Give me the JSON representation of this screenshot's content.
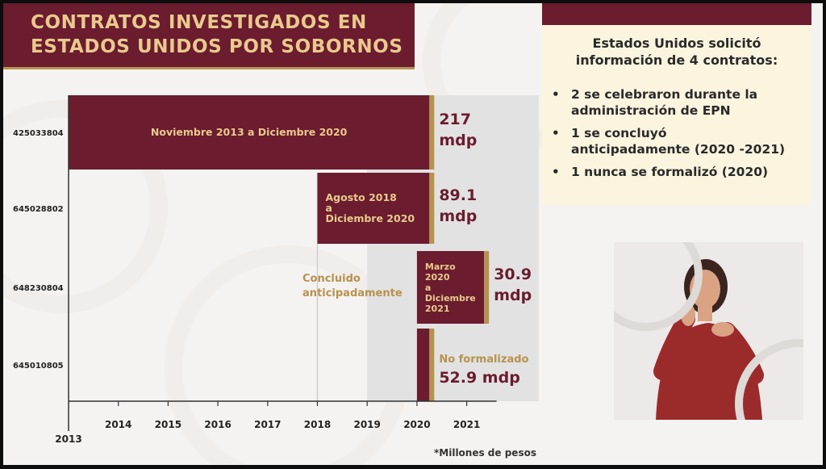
{
  "header": {
    "title_line1": "CONTRATOS INVESTIGADOS EN",
    "title_line2": "ESTADOS UNIDOS POR SOBORNOS"
  },
  "info_panel": {
    "heading_line1": "Estados Unidos solicitó",
    "heading_line2": "información de 4 contratos:",
    "bullets": [
      [
        "2 se celebraron durante la",
        "administración de EPN"
      ],
      [
        "1 se concluyó",
        "anticipadamente (2020 -2021)"
      ],
      [
        "1 nunca se formalizó (2020)"
      ]
    ]
  },
  "chart_data": {
    "type": "bar",
    "orientation": "horizontal-timeline",
    "x_axis_ticks": [
      "2013",
      "2014",
      "2015",
      "2016",
      "2017",
      "2018",
      "2019",
      "2020",
      "2021"
    ],
    "x_range": [
      2013,
      2021.6
    ],
    "categories": [
      "425033804",
      "645028802",
      "648230804",
      "645010805"
    ],
    "series": [
      {
        "values": [
          217,
          89.1,
          30.9,
          52.9
        ],
        "value_labels": [
          [
            "217",
            "mdp"
          ],
          [
            "89.1",
            "mdp"
          ],
          [
            "30.9",
            "mdp"
          ],
          [
            "No formalizado",
            "52.9 mdp"
          ]
        ],
        "periods": [
          {
            "start": 2013,
            "end": 2020.25,
            "label": [
              "Noviembre 2013 a Diciembre 2020"
            ]
          },
          {
            "start": 2018,
            "end": 2020.25,
            "label": [
              "Agosto 2018",
              "a",
              "Diciembre 2020"
            ]
          },
          {
            "start": 2020,
            "end": 2021.35,
            "label": [
              "Marzo",
              "2020",
              "a",
              "Diciembre",
              "2021"
            ]
          },
          {
            "start": 2020,
            "end": 2020.25,
            "label": []
          }
        ]
      }
    ],
    "annotations": [
      [
        "Concluido",
        "anticipadamente"
      ]
    ],
    "footnote": "*Millones de pesos",
    "colors": {
      "bar": "#6b1c2e",
      "gold": "#b7924e",
      "shade": "#e2e2e2"
    }
  }
}
